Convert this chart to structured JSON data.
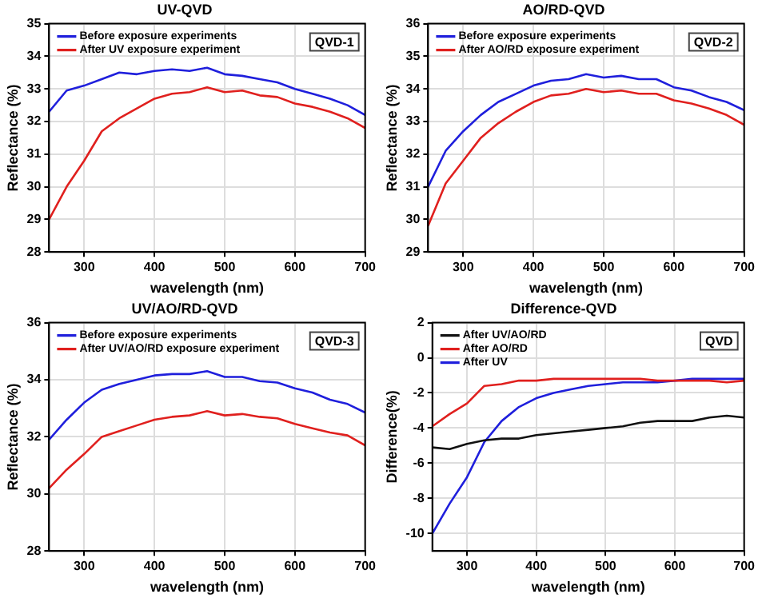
{
  "chart_data": [
    {
      "type": "line",
      "title": "UV-QVD",
      "xlabel": "wavelength (nm)",
      "ylabel": "Reflectance (%)",
      "annotations": [
        "QVD-1"
      ],
      "legend": "top left",
      "grid": true,
      "x": [
        250,
        275,
        300,
        325,
        350,
        375,
        400,
        425,
        450,
        475,
        500,
        525,
        550,
        575,
        600,
        625,
        650,
        675,
        700
      ],
      "xlim": [
        250,
        700
      ],
      "xticks": [
        300,
        400,
        500,
        600,
        700
      ],
      "ylim": [
        28,
        35
      ],
      "yticks": [
        28,
        29,
        30,
        31,
        32,
        33,
        34,
        35
      ],
      "series": [
        {
          "name": "Before exposure experiments",
          "color": "#1f1fdc",
          "values": [
            32.3,
            32.95,
            33.1,
            33.3,
            33.5,
            33.45,
            33.55,
            33.6,
            33.55,
            33.65,
            33.45,
            33.4,
            33.3,
            33.2,
            33.0,
            32.85,
            32.7,
            32.5,
            32.2
          ]
        },
        {
          "name": "After UV exposure experiment",
          "color": "#e0201e",
          "values": [
            29.0,
            30.0,
            30.8,
            31.7,
            32.1,
            32.4,
            32.7,
            32.85,
            32.9,
            33.05,
            32.9,
            32.95,
            32.8,
            32.75,
            32.55,
            32.45,
            32.3,
            32.1,
            31.8
          ]
        }
      ]
    },
    {
      "type": "line",
      "title": "AO/RD-QVD",
      "xlabel": "wavelength (nm)",
      "ylabel": "Reflectance (%)",
      "annotations": [
        "QVD-2"
      ],
      "legend": "top left",
      "grid": true,
      "x": [
        250,
        275,
        300,
        325,
        350,
        375,
        400,
        425,
        450,
        475,
        500,
        525,
        550,
        575,
        600,
        625,
        650,
        675,
        700
      ],
      "xlim": [
        250,
        700
      ],
      "xticks": [
        300,
        400,
        500,
        600,
        700
      ],
      "ylim": [
        29,
        36
      ],
      "yticks": [
        29,
        30,
        31,
        32,
        33,
        34,
        35,
        36
      ],
      "series": [
        {
          "name": "Before exposure experiments",
          "color": "#1f1fdc",
          "values": [
            31.0,
            32.1,
            32.7,
            33.2,
            33.6,
            33.85,
            34.1,
            34.25,
            34.3,
            34.45,
            34.35,
            34.4,
            34.3,
            34.3,
            34.05,
            33.95,
            33.75,
            33.6,
            33.35
          ]
        },
        {
          "name": "After AO/RD exposure experiment",
          "color": "#e0201e",
          "values": [
            29.8,
            31.1,
            31.8,
            32.5,
            32.95,
            33.3,
            33.6,
            33.8,
            33.85,
            34.0,
            33.9,
            33.95,
            33.85,
            33.85,
            33.65,
            33.55,
            33.4,
            33.2,
            32.9
          ]
        }
      ]
    },
    {
      "type": "line",
      "title": "UV/AO/RD-QVD",
      "xlabel": "wavelength (nm)",
      "ylabel": "Reflectance (%)",
      "annotations": [
        "QVD-3"
      ],
      "legend": "top left",
      "grid": true,
      "x": [
        250,
        275,
        300,
        325,
        350,
        375,
        400,
        425,
        450,
        475,
        500,
        525,
        550,
        575,
        600,
        625,
        650,
        675,
        700
      ],
      "xlim": [
        250,
        700
      ],
      "xticks": [
        300,
        400,
        500,
        600,
        700
      ],
      "ylim": [
        28,
        36
      ],
      "yticks": [
        28,
        30,
        32,
        34,
        36
      ],
      "series": [
        {
          "name": "Before exposure experiments",
          "color": "#1f1fdc",
          "values": [
            31.9,
            32.6,
            33.2,
            33.65,
            33.85,
            34.0,
            34.15,
            34.2,
            34.2,
            34.3,
            34.1,
            34.1,
            33.95,
            33.9,
            33.7,
            33.55,
            33.3,
            33.15,
            32.85
          ]
        },
        {
          "name": "After UV/AO/RD exposure experiment",
          "color": "#e0201e",
          "values": [
            30.2,
            30.85,
            31.4,
            32.0,
            32.2,
            32.4,
            32.6,
            32.7,
            32.75,
            32.9,
            32.75,
            32.8,
            32.7,
            32.65,
            32.45,
            32.3,
            32.15,
            32.05,
            31.7
          ]
        }
      ]
    },
    {
      "type": "line",
      "title": "Difference-QVD",
      "xlabel": "wavelength (nm)",
      "ylabel": "Difference(%)",
      "annotations": [
        "QVD"
      ],
      "legend": "top left",
      "grid": true,
      "x": [
        250,
        275,
        300,
        325,
        350,
        375,
        400,
        425,
        450,
        475,
        500,
        525,
        550,
        575,
        600,
        625,
        650,
        675,
        700
      ],
      "xlim": [
        250,
        700
      ],
      "xticks": [
        300,
        400,
        500,
        600,
        700
      ],
      "ylim": [
        -11,
        2
      ],
      "yticks": [
        -10,
        -8,
        -6,
        -4,
        -2,
        0,
        2
      ],
      "series": [
        {
          "name": "After UV/AO/RD",
          "color": "#111111",
          "values": [
            -5.1,
            -5.2,
            -4.9,
            -4.7,
            -4.6,
            -4.6,
            -4.4,
            -4.3,
            -4.2,
            -4.1,
            -4.0,
            -3.9,
            -3.7,
            -3.6,
            -3.6,
            -3.6,
            -3.4,
            -3.3,
            -3.4
          ]
        },
        {
          "name": "After AO/RD",
          "color": "#e0201e",
          "values": [
            -3.9,
            -3.2,
            -2.6,
            -1.6,
            -1.5,
            -1.3,
            -1.3,
            -1.2,
            -1.2,
            -1.2,
            -1.2,
            -1.2,
            -1.2,
            -1.3,
            -1.3,
            -1.3,
            -1.3,
            -1.4,
            -1.3
          ]
        },
        {
          "name": "After UV",
          "color": "#1f1fdc",
          "values": [
            -10,
            -8.3,
            -6.8,
            -4.8,
            -3.6,
            -2.8,
            -2.3,
            -2.0,
            -1.8,
            -1.6,
            -1.5,
            -1.4,
            -1.4,
            -1.4,
            -1.3,
            -1.2,
            -1.2,
            -1.2,
            -1.2
          ]
        }
      ]
    }
  ]
}
